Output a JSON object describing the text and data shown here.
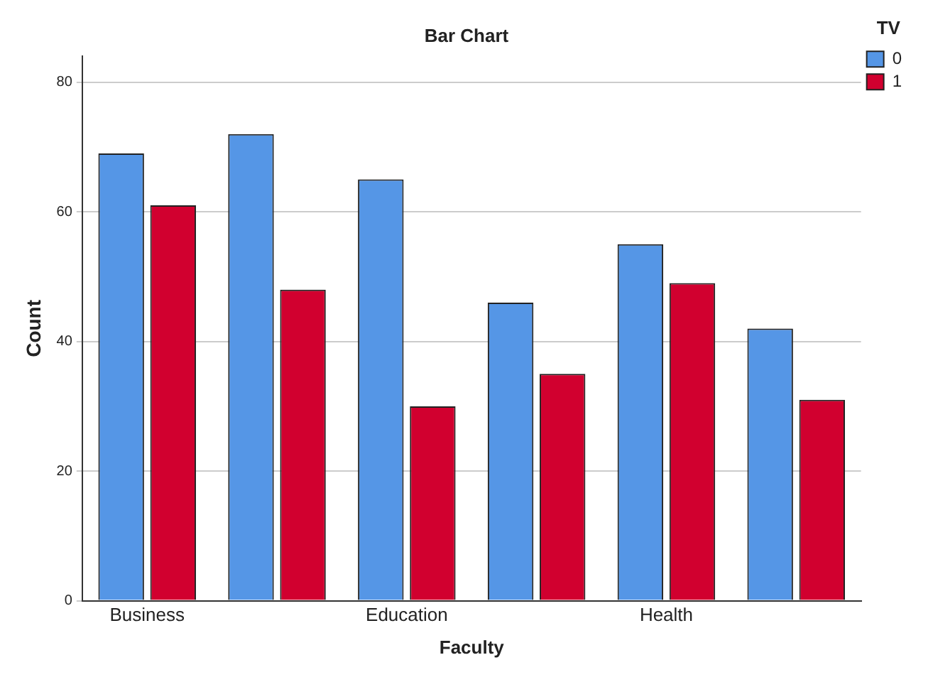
{
  "chart_data": {
    "type": "bar",
    "title": "Bar Chart",
    "xlabel": "Faculty",
    "ylabel": "Count",
    "legend_title": "TV",
    "categories": [
      "Business",
      null,
      "Education",
      null,
      "Health",
      null
    ],
    "series": [
      {
        "name": "0",
        "color": "#5596e6",
        "values": [
          69,
          72,
          65,
          46,
          55,
          42
        ]
      },
      {
        "name": "1",
        "color": "#d1002f",
        "values": [
          61,
          48,
          30,
          35,
          49,
          31
        ]
      }
    ],
    "ylim": [
      0,
      84
    ],
    "yticks": [
      0,
      20,
      40,
      60,
      80
    ],
    "grid": "y",
    "legend": "top right"
  }
}
